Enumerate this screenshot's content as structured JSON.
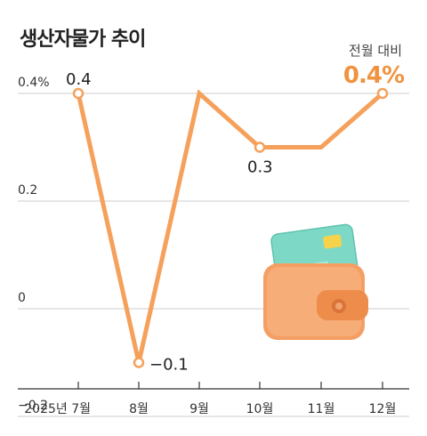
{
  "header": {
    "title": "생산자물가 추이",
    "subtitle": "전월 대비",
    "headline_value": "0.4%"
  },
  "colors": {
    "line": "#f5a15c",
    "point_stroke": "#f5a15c",
    "grid": "#cccccc",
    "headline": "#f0933f"
  },
  "illustration": {
    "icon": "wallet-with-card-icon"
  },
  "chart_data": {
    "type": "line",
    "categories": [
      "2025년 7월",
      "8월",
      "9월",
      "10월",
      "11월",
      "12월"
    ],
    "series": [
      {
        "values": [
          0.4,
          -0.1,
          0.4,
          0.3,
          0.3,
          0.4
        ]
      }
    ],
    "data_labels": [
      "0.4",
      "−0.1",
      "",
      "0.3",
      "",
      ""
    ],
    "marked_points": [
      0,
      1,
      3,
      5
    ],
    "y_ticks": [
      {
        "value": 0.4,
        "label": "0.4%"
      },
      {
        "value": 0.2,
        "label": "0.2"
      },
      {
        "value": 0,
        "label": "0"
      },
      {
        "value": -0.2,
        "label": "−0.2"
      }
    ],
    "ylim": [
      -0.2,
      0.4
    ],
    "grid": true,
    "xlabel": "",
    "ylabel": ""
  }
}
